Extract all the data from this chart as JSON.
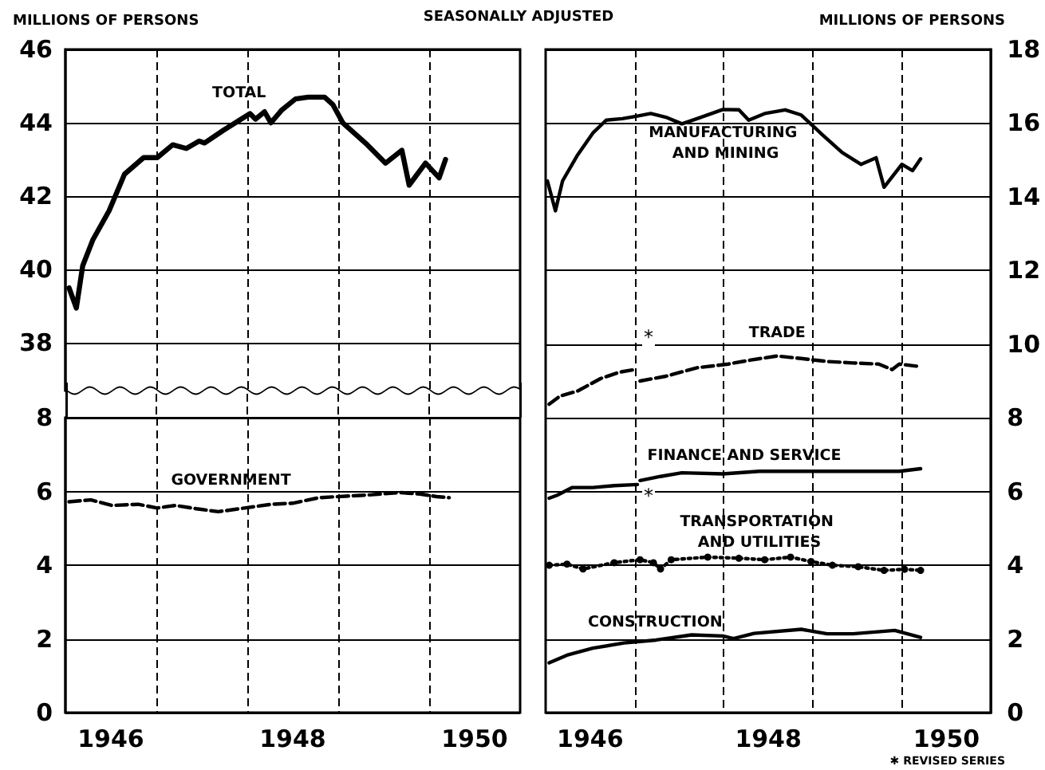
{
  "chart_data": [
    {
      "type": "line",
      "title": "SEASONALLY ADJUSTED",
      "ylabel": "MILLIONS OF PERSONS",
      "xlim": [
        1946,
        1951
      ],
      "ylim": [
        36.7,
        46
      ],
      "yticks": [
        38,
        40,
        42,
        44,
        46
      ],
      "xticks": [
        {
          "value": 1946.5,
          "label": "1946"
        },
        {
          "value": 1947,
          "label": null
        },
        {
          "value": 1948,
          "label": null
        },
        {
          "value": 1948.5,
          "label": "1948"
        },
        {
          "value": 1949,
          "label": null
        },
        {
          "value": 1950,
          "label": null
        },
        {
          "value": 1950.5,
          "label": "1950"
        }
      ],
      "grid": true,
      "tick_labels": "y",
      "line_style": "solid",
      "marker": "none",
      "series": [
        {
          "name": "TOTAL",
          "color": "#000000",
          "x": [
            1946.04,
            1946.12,
            1946.19,
            1946.3,
            1946.48,
            1946.65,
            1946.86,
            1947.01,
            1947.18,
            1947.33,
            1947.47,
            1947.53,
            1947.74,
            1948.03,
            1948.09,
            1948.19,
            1948.26,
            1948.38,
            1948.53,
            1948.67,
            1948.85,
            1948.94,
            1949.05,
            1949.32,
            1949.52,
            1949.7,
            1949.78,
            1949.96,
            1950.11,
            1950.18
          ],
          "values": [
            39.5,
            38.95,
            40.1,
            40.8,
            41.6,
            42.6,
            43.05,
            43.05,
            43.4,
            43.3,
            43.5,
            43.45,
            43.8,
            44.25,
            44.1,
            44.3,
            44.0,
            44.35,
            44.65,
            44.7,
            44.7,
            44.5,
            44.0,
            43.4,
            42.9,
            43.25,
            42.3,
            42.9,
            42.5,
            43.0
          ]
        }
      ]
    },
    {
      "type": "line",
      "xlim": [
        1946,
        1951
      ],
      "ylim": [
        0,
        8
      ],
      "yticks": [
        0,
        2,
        4,
        6,
        8
      ],
      "xticks": [
        {
          "value": 1946.5,
          "label": "1946"
        },
        {
          "value": 1947,
          "label": null
        },
        {
          "value": 1948,
          "label": null
        },
        {
          "value": 1948.5,
          "label": "1948"
        },
        {
          "value": 1949,
          "label": null
        },
        {
          "value": 1950,
          "label": null
        },
        {
          "value": 1950.5,
          "label": "1950"
        }
      ],
      "grid": true,
      "line_style": "dashed",
      "marker": "none",
      "series": [
        {
          "name": "GOVERNMENT",
          "color": "#000000",
          "x": [
            1946.04,
            1946.28,
            1946.51,
            1946.8,
            1947.01,
            1947.21,
            1947.44,
            1947.68,
            1947.97,
            1948.26,
            1948.5,
            1948.79,
            1949.08,
            1949.37,
            1949.67,
            1949.9,
            1950.08,
            1950.22
          ],
          "values": [
            5.72,
            5.77,
            5.62,
            5.65,
            5.55,
            5.62,
            5.53,
            5.45,
            5.55,
            5.65,
            5.68,
            5.83,
            5.87,
            5.91,
            5.97,
            5.93,
            5.86,
            5.83
          ]
        }
      ]
    },
    {
      "type": "line",
      "ylabel": "MILLIONS OF PERSONS",
      "xlim": [
        1946,
        1951
      ],
      "ylim": [
        0,
        18
      ],
      "yticks": [
        0,
        2,
        4,
        6,
        8,
        10,
        12,
        14,
        16,
        18
      ],
      "xticks": [
        {
          "value": 1946.5,
          "label": "1946"
        },
        {
          "value": 1947,
          "label": null
        },
        {
          "value": 1948,
          "label": null
        },
        {
          "value": 1948.5,
          "label": "1948"
        },
        {
          "value": 1949,
          "label": null
        },
        {
          "value": 1950,
          "label": null
        },
        {
          "value": 1950.5,
          "label": "1950"
        }
      ],
      "grid": true,
      "line_style": "solid",
      "marker": "none",
      "annotations": [
        "✱ REVISED SERIES",
        "*",
        "*"
      ],
      "series": [
        {
          "name": "MANUFACTURING AND MINING",
          "color": "#000000",
          "x": [
            1946.02,
            1946.11,
            1946.19,
            1946.36,
            1946.53,
            1946.68,
            1946.86,
            1947.03,
            1947.18,
            1947.35,
            1947.53,
            1947.7,
            1947.99,
            1948.17,
            1948.28,
            1948.46,
            1948.69,
            1948.87,
            1949.1,
            1949.33,
            1949.54,
            1949.71,
            1949.8,
            1950.0,
            1950.12,
            1950.21
          ],
          "values": [
            14.43,
            13.62,
            14.43,
            15.14,
            15.73,
            16.08,
            16.12,
            16.19,
            16.26,
            16.16,
            15.98,
            16.12,
            16.37,
            16.36,
            16.08,
            16.26,
            16.36,
            16.22,
            15.7,
            15.2,
            14.88,
            15.06,
            14.26,
            14.88,
            14.71,
            15.03
          ]
        },
        {
          "name": "TRADE",
          "color": "#000000",
          "line_style": "dashed",
          "x": [
            1946.04,
            1946.16,
            1946.36,
            1946.62,
            1946.83,
            1947.0,
            1947.03,
            1947.06,
            1947.35,
            1947.7,
            1948.05,
            1948.28,
            1948.6,
            1948.87,
            1949.16,
            1949.45,
            1949.74,
            1949.89,
            1949.97,
            1950.21
          ],
          "values": [
            8.37,
            8.59,
            8.73,
            9.07,
            9.24,
            9.31,
            null,
            9.0,
            9.13,
            9.36,
            9.46,
            9.56,
            9.68,
            9.61,
            9.53,
            9.49,
            9.46,
            9.31,
            9.46,
            9.39
          ]
        },
        {
          "name": "FINANCE AND SERVICE",
          "color": "#000000",
          "x": [
            1946.04,
            1946.13,
            1946.3,
            1946.53,
            1946.77,
            1947.03,
            1947.045,
            1947.06,
            1947.29,
            1947.53,
            1947.99,
            1948.4,
            1948.87,
            1949.45,
            1949.97,
            1950.21
          ],
          "values": [
            5.82,
            5.9,
            6.11,
            6.11,
            6.16,
            6.19,
            null,
            6.3,
            6.41,
            6.51,
            6.48,
            6.55,
            6.55,
            6.55,
            6.55,
            6.62
          ]
        },
        {
          "name": "TRANSPORTATION AND UTILITIES",
          "color": "#000000",
          "line_style": "dotted",
          "marker": "circle",
          "x": [
            1946.04,
            1946.24,
            1946.42,
            1946.77,
            1947.06,
            1947.21,
            1947.29,
            1947.41,
            1947.82,
            1948.17,
            1948.46,
            1948.75,
            1948.98,
            1949.22,
            1949.51,
            1949.8,
            1950.03,
            1950.21
          ],
          "values": [
            4.0,
            4.03,
            3.9,
            4.07,
            4.15,
            4.07,
            3.9,
            4.15,
            4.22,
            4.19,
            4.15,
            4.22,
            4.1,
            4.0,
            3.96,
            3.86,
            3.89,
            3.86
          ]
        },
        {
          "name": "CONSTRUCTION",
          "color": "#000000",
          "x": [
            1946.04,
            1946.24,
            1946.53,
            1946.88,
            1947.24,
            1947.64,
            1947.99,
            1948.11,
            1948.34,
            1948.87,
            1949.16,
            1949.45,
            1949.92,
            1950.21
          ],
          "values": [
            1.35,
            1.56,
            1.75,
            1.89,
            1.97,
            2.11,
            2.08,
            2.01,
            2.15,
            2.26,
            2.14,
            2.14,
            2.23,
            2.04
          ]
        }
      ]
    }
  ]
}
